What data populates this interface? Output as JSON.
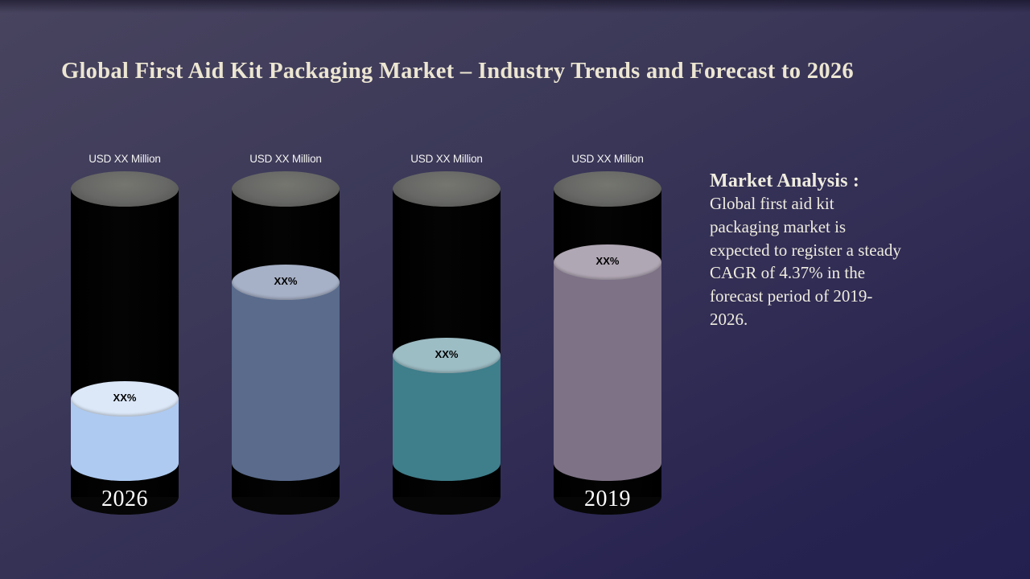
{
  "slide": {
    "title": "Global First Aid Kit Packaging Market – Industry Trends and Forecast to 2026"
  },
  "analysis": {
    "heading": "Market Analysis :",
    "lines": [
      "Global first aid kit",
      "packaging  market is",
      "expected to register  a steady",
      "CAGR of 4.37% in the",
      "forecast period of 2019-",
      "2026."
    ]
  },
  "chart_data": {
    "type": "bar",
    "subtype": "3d-cylinder-fill",
    "title": "Global First Aid Kit Packaging Market – Industry Trends and Forecast to 2026",
    "note": "All values masked as placeholders (USD XX Million / XX%)",
    "bars": [
      {
        "category_label": "2026",
        "top_label": "USD XX Million",
        "fill_label": "XX%",
        "fill_fraction_visual": 0.28,
        "fill_color": "#aecaf1",
        "fill_cap_color": "#dce8f8"
      },
      {
        "category_label": "",
        "top_label": "USD XX Million",
        "fill_label": "XX%",
        "fill_fraction_visual": 0.68,
        "fill_color": "#5a6b8c",
        "fill_cap_color": "#a6b0c6"
      },
      {
        "category_label": "",
        "top_label": "USD XX Million",
        "fill_label": "XX%",
        "fill_fraction_visual": 0.43,
        "fill_color": "#3f7e8b",
        "fill_cap_color": "#9dbdc5"
      },
      {
        "category_label": "2019",
        "top_label": "USD XX Million",
        "fill_label": "XX%",
        "fill_fraction_visual": 0.75,
        "fill_color": "#7d7286",
        "fill_cap_color": "#b0a7b4"
      }
    ],
    "colors": {
      "cylinder_body": "#040404",
      "cylinder_top_cap": "#676866",
      "top_label_text": "#f2f2f2",
      "fill_label_text": "#000000",
      "year_text": "#fdfdfd"
    },
    "layout_hints": {
      "legend": false,
      "grid": false,
      "orientation": "vertical"
    }
  },
  "theme": {
    "background_top_left": "#48445f",
    "background_bottom_right": "#232050",
    "title_color": "#ece6d2",
    "analysis_text_color": "#efecdf"
  }
}
